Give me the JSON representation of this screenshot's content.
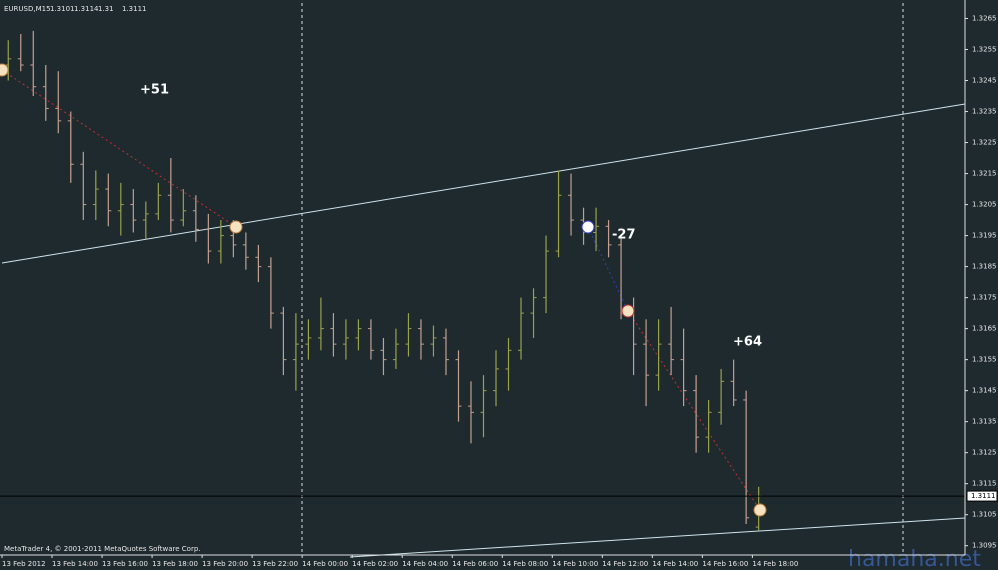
{
  "chart_data": {
    "type": "ohlc",
    "symbol": "EURUSD,M15",
    "ohlc": [
      [
        1.325,
        1.3258,
        1.3245,
        1.3252
      ],
      [
        1.3252,
        1.326,
        1.3248,
        1.325
      ],
      [
        1.325,
        1.3261,
        1.324,
        1.3243
      ],
      [
        1.3243,
        1.325,
        1.3232,
        1.3236
      ],
      [
        1.3236,
        1.3248,
        1.3228,
        1.3232
      ],
      [
        1.3232,
        1.3235,
        1.3212,
        1.3218
      ],
      [
        1.3218,
        1.3222,
        1.32,
        1.3205
      ],
      [
        1.3205,
        1.3216,
        1.32,
        1.321
      ],
      [
        1.321,
        1.3215,
        1.3198,
        1.3203
      ],
      [
        1.3203,
        1.3212,
        1.3195,
        1.3205
      ],
      [
        1.3205,
        1.321,
        1.3196,
        1.32
      ],
      [
        1.32,
        1.3206,
        1.3194,
        1.3202
      ],
      [
        1.3202,
        1.3212,
        1.32,
        1.3208
      ],
      [
        1.3208,
        1.322,
        1.3196,
        1.32
      ],
      [
        1.32,
        1.321,
        1.3198,
        1.3203
      ],
      [
        1.3203,
        1.3208,
        1.3193,
        1.3197
      ],
      [
        1.3197,
        1.3202,
        1.3186,
        1.319
      ],
      [
        1.319,
        1.32,
        1.3186,
        1.3195
      ],
      [
        1.3195,
        1.32,
        1.3188,
        1.3192
      ],
      [
        1.3192,
        1.3196,
        1.3184,
        1.3188
      ],
      [
        1.3188,
        1.3192,
        1.318,
        1.3185
      ],
      [
        1.3185,
        1.3188,
        1.3165,
        1.317
      ],
      [
        1.317,
        1.3172,
        1.315,
        1.3155
      ],
      [
        1.3155,
        1.317,
        1.3145,
        1.316
      ],
      [
        1.316,
        1.3168,
        1.3155,
        1.3162
      ],
      [
        1.3162,
        1.3175,
        1.3158,
        1.3165
      ],
      [
        1.3165,
        1.317,
        1.3156,
        1.316
      ],
      [
        1.316,
        1.3168,
        1.3155,
        1.3162
      ],
      [
        1.3162,
        1.3168,
        1.3158,
        1.3165
      ],
      [
        1.3165,
        1.3168,
        1.3155,
        1.3158
      ],
      [
        1.3158,
        1.3162,
        1.315,
        1.3155
      ],
      [
        1.3155,
        1.3165,
        1.3152,
        1.316
      ],
      [
        1.316,
        1.317,
        1.3156,
        1.3165
      ],
      [
        1.3165,
        1.3168,
        1.3155,
        1.316
      ],
      [
        1.316,
        1.3166,
        1.3156,
        1.3162
      ],
      [
        1.3162,
        1.3165,
        1.315,
        1.3155
      ],
      [
        1.3155,
        1.3158,
        1.3135,
        1.314
      ],
      [
        1.314,
        1.3148,
        1.3128,
        1.3138
      ],
      [
        1.3138,
        1.315,
        1.313,
        1.3145
      ],
      [
        1.3145,
        1.3158,
        1.314,
        1.3152
      ],
      [
        1.3152,
        1.3162,
        1.3145,
        1.3158
      ],
      [
        1.3158,
        1.3175,
        1.3155,
        1.317
      ],
      [
        1.317,
        1.3178,
        1.3162,
        1.3175
      ],
      [
        1.3175,
        1.3195,
        1.317,
        1.319
      ],
      [
        1.319,
        1.3216,
        1.3188,
        1.3208
      ],
      [
        1.3208,
        1.3215,
        1.3195,
        1.32
      ],
      [
        1.32,
        1.3204,
        1.3192,
        1.3196
      ],
      [
        1.3196,
        1.3204,
        1.319,
        1.3198
      ],
      [
        1.3198,
        1.32,
        1.3188,
        1.3192
      ],
      [
        1.3192,
        1.3195,
        1.3168,
        1.317
      ],
      [
        1.317,
        1.3175,
        1.315,
        1.316
      ],
      [
        1.316,
        1.3168,
        1.314,
        1.315
      ],
      [
        1.315,
        1.3168,
        1.3145,
        1.316
      ],
      [
        1.316,
        1.3172,
        1.315,
        1.3155
      ],
      [
        1.3155,
        1.3165,
        1.314,
        1.3145
      ],
      [
        1.3145,
        1.315,
        1.3125,
        1.313
      ],
      [
        1.313,
        1.3142,
        1.3125,
        1.3138
      ],
      [
        1.3138,
        1.3152,
        1.3134,
        1.3148
      ],
      [
        1.3148,
        1.3155,
        1.314,
        1.3142
      ],
      [
        1.3142,
        1.3145,
        1.3102,
        1.3104
      ],
      [
        1.3101,
        1.3114,
        1.31,
        1.3111
      ]
    ],
    "up_color": "#9aa24a",
    "down_color": "#c4a090",
    "current_price": 1.3111,
    "xlim": [
      0,
      77
    ],
    "xticks": [
      {
        "value": 0,
        "label": "13 Feb 2012"
      },
      {
        "value": 4,
        "label": "13 Feb 14:00"
      },
      {
        "value": 8,
        "label": "13 Feb 16:00"
      },
      {
        "value": 12,
        "label": "13 Feb 18:00"
      },
      {
        "value": 16,
        "label": "13 Feb 20:00"
      },
      {
        "value": 20,
        "label": "13 Feb 22:00"
      },
      {
        "value": 24,
        "label": "14 Feb 00:00"
      },
      {
        "value": 28,
        "label": "14 Feb 02:00"
      },
      {
        "value": 32,
        "label": "14 Feb 04:00"
      },
      {
        "value": 36,
        "label": "14 Feb 06:00"
      },
      {
        "value": 40,
        "label": "14 Feb 08:00"
      },
      {
        "value": 44,
        "label": "14 Feb 10:00"
      },
      {
        "value": 48,
        "label": "14 Feb 12:00"
      },
      {
        "value": 52,
        "label": "14 Feb 14:00"
      },
      {
        "value": 56,
        "label": "14 Feb 16:00"
      },
      {
        "value": 60,
        "label": "14 Feb 18:00"
      }
    ],
    "ylim": [
      1.3092,
      1.327
    ],
    "yticks": [
      1.3265,
      1.3255,
      1.3245,
      1.3235,
      1.3225,
      1.3215,
      1.3205,
      1.3195,
      1.3185,
      1.3175,
      1.3165,
      1.3155,
      1.3145,
      1.3135,
      1.3125,
      1.3115,
      1.3105,
      1.3095
    ],
    "annotations": [
      "+51",
      "-27",
      "+64"
    ],
    "footer": "MetaTrader 4, © 2001-2011 MetaQuotes Software Corp.",
    "watermark": "hamaha.net"
  }
}
